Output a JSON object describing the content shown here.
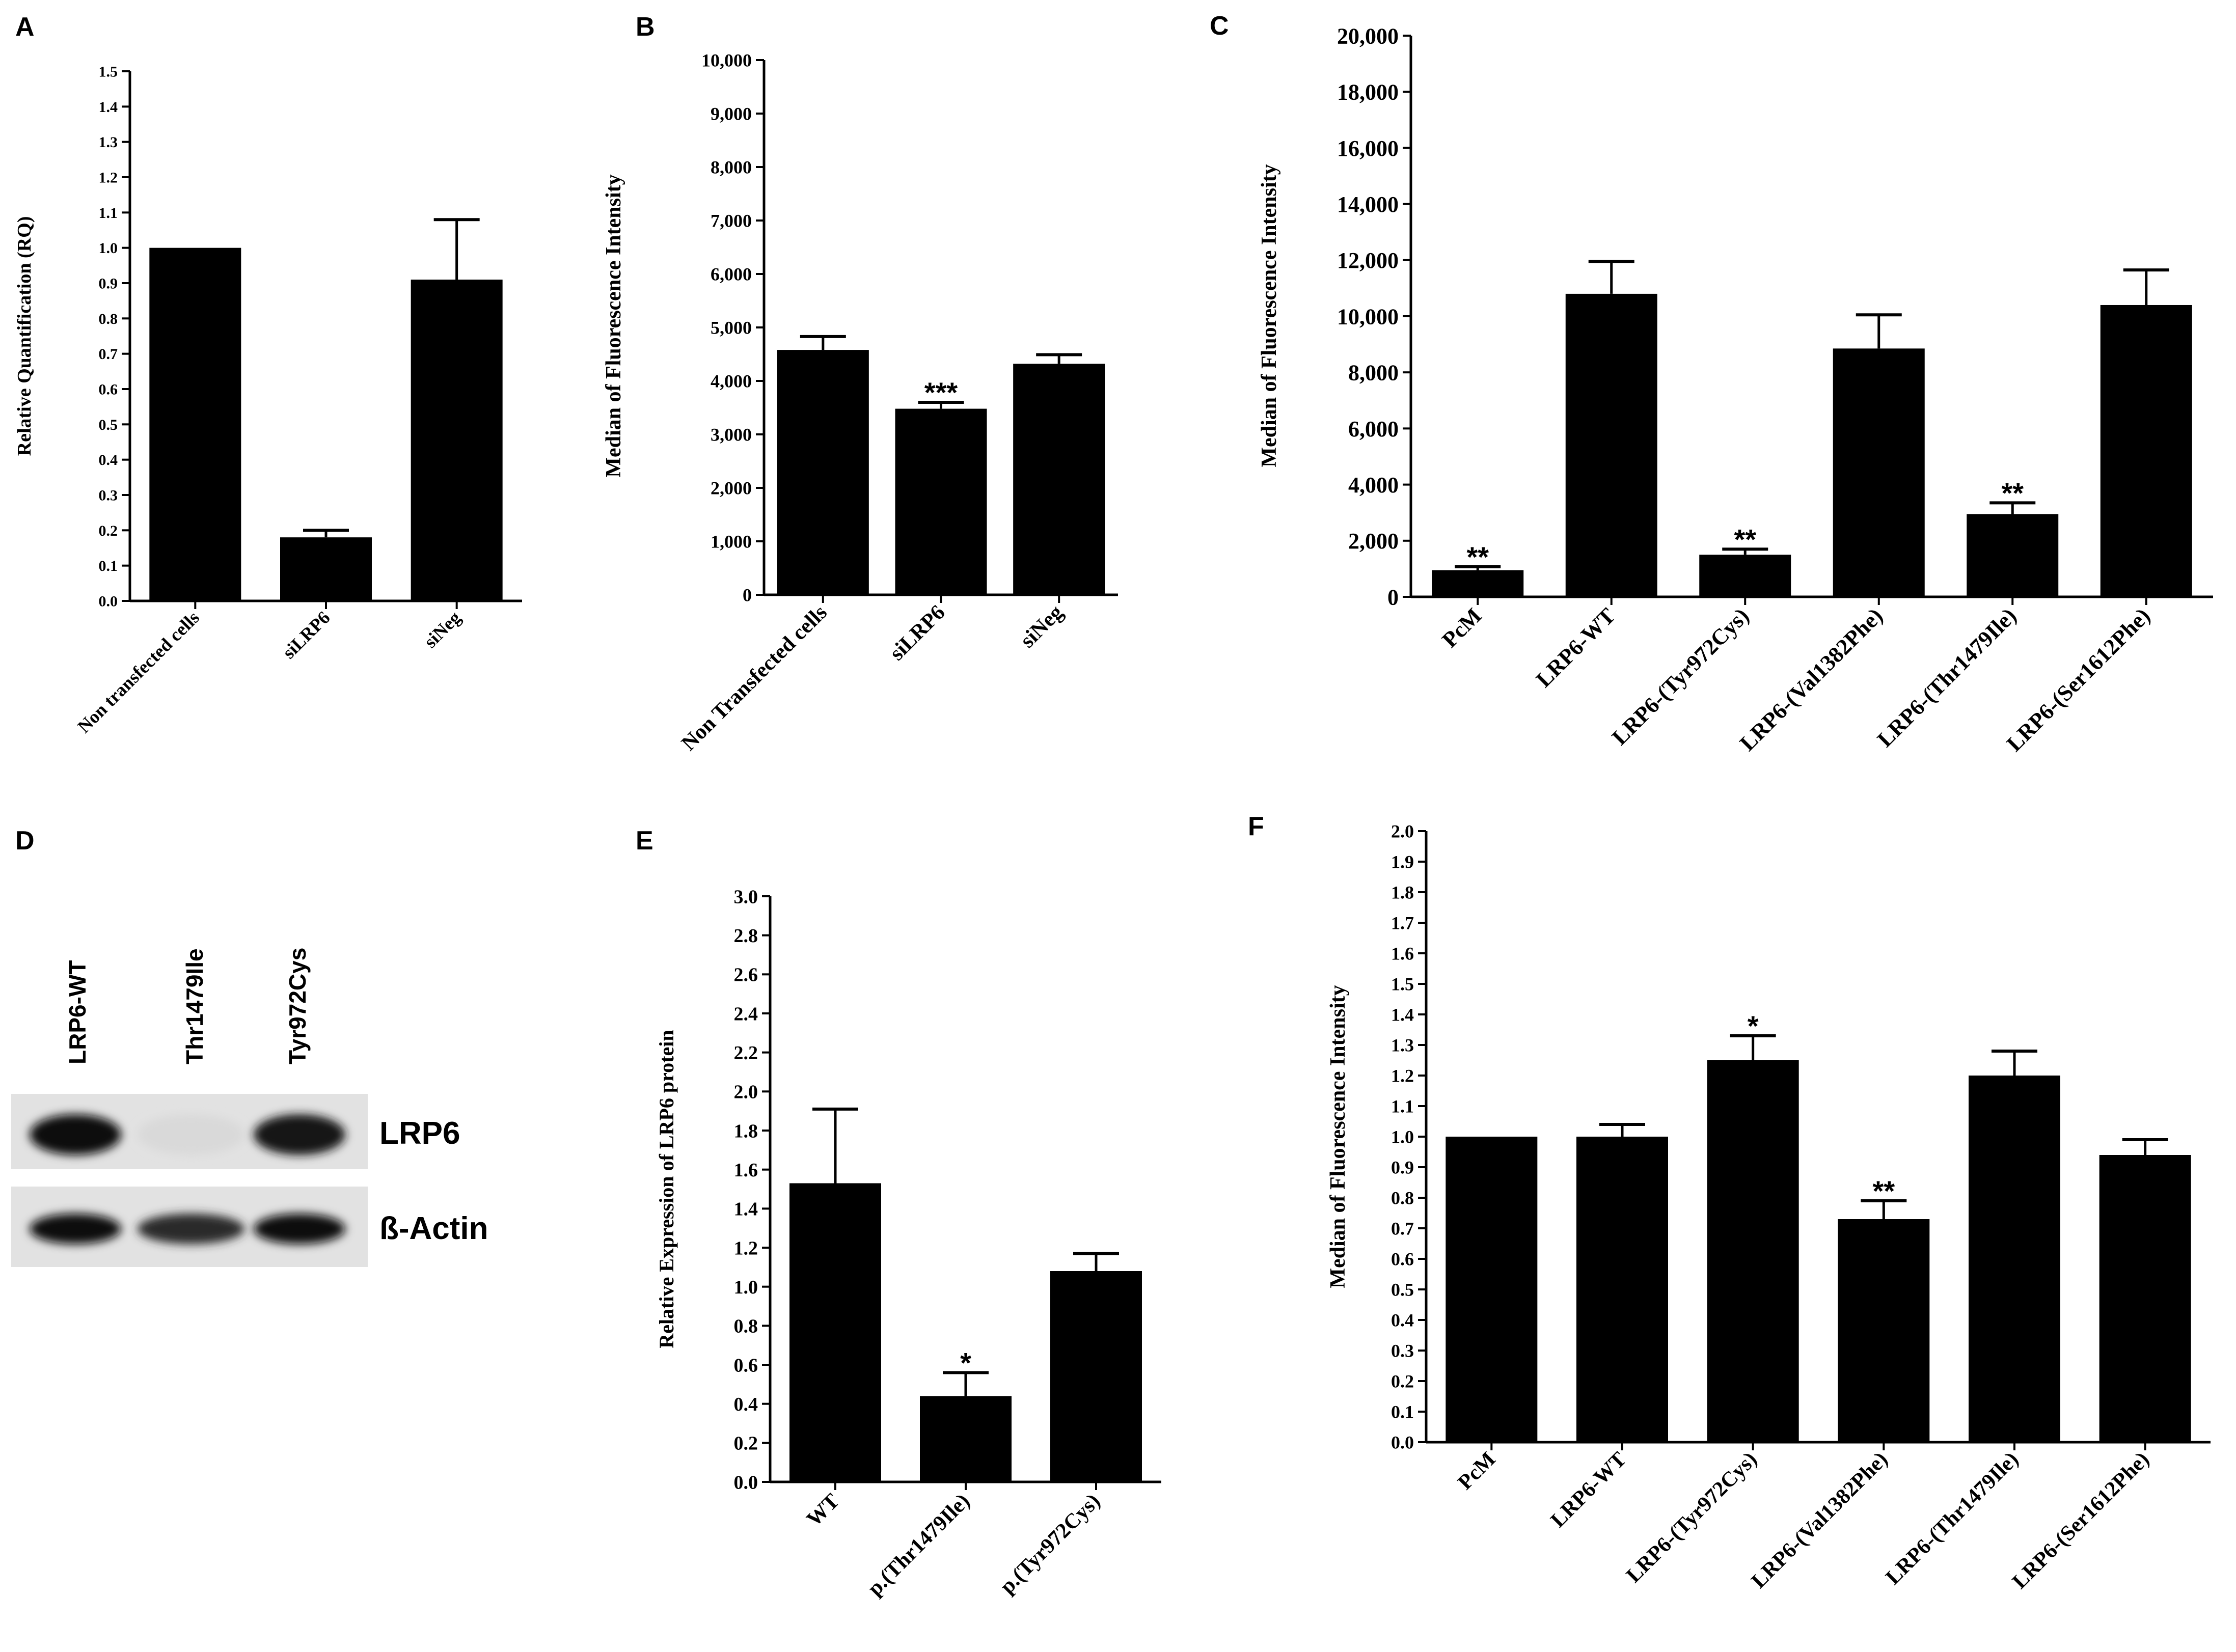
{
  "chart_data": [
    {
      "type": "bar",
      "panel": "A",
      "title": "",
      "xlabel": "",
      "ylabel": "Relative Quantification (RQ)",
      "ylim": [
        0,
        1.5
      ],
      "yticks": [
        "0.0",
        "0.1",
        "0.2",
        "0.3",
        "0.4",
        "0.5",
        "0.6",
        "0.7",
        "0.8",
        "0.9",
        "1.0",
        "1.1",
        "1.2",
        "1.3",
        "1.4",
        "1.5"
      ],
      "categories": [
        "Non transfected cells",
        "siLRP6",
        "siNeg"
      ],
      "values": [
        1.0,
        0.18,
        0.91
      ],
      "errors": [
        0,
        0.02,
        0.17
      ],
      "significance": [
        "",
        "",
        ""
      ]
    },
    {
      "type": "bar",
      "panel": "B",
      "title": "",
      "xlabel": "",
      "ylabel": "Median of Fluorescence Intensity",
      "ylim": [
        0,
        10000
      ],
      "yticks": [
        "0",
        "1,000",
        "2,000",
        "3,000",
        "4,000",
        "5,000",
        "6,000",
        "7,000",
        "8,000",
        "9,000",
        "10,000"
      ],
      "categories": [
        "Non Transfected cells",
        "siLRP6",
        "siNeg"
      ],
      "values": [
        4580,
        3480,
        4320
      ],
      "errors": [
        250,
        120,
        170
      ],
      "significance": [
        "",
        "***",
        ""
      ]
    },
    {
      "type": "bar",
      "panel": "C",
      "title": "",
      "xlabel": "",
      "ylabel": "Median of Fluorescence Intensity",
      "ylim": [
        0,
        20000
      ],
      "yticks": [
        "0",
        "2,000",
        "4,000",
        "6,000",
        "8,000",
        "10,000",
        "12,000",
        "14,000",
        "16,000",
        "18,000",
        "20,000"
      ],
      "categories": [
        "PcM",
        "LRP6-WT",
        "LRP6-(Tyr972Cys)",
        "LRP6-(Val1382Phe)",
        "LRP6-(Thr1479Ile)",
        "LRP6-(Ser1612Phe)"
      ],
      "values": [
        950,
        10800,
        1500,
        8850,
        2950,
        10400
      ],
      "errors": [
        120,
        1150,
        200,
        1200,
        400,
        1250
      ],
      "significance": [
        "**",
        "",
        "**",
        "",
        "**",
        ""
      ]
    },
    {
      "type": "blot",
      "panel": "D",
      "lanes": [
        "LRP6-WT",
        "Thr1479Ile",
        "Tyr972Cys"
      ],
      "rows": [
        {
          "label": "LRP6",
          "intensities": [
            1.0,
            0.08,
            0.95
          ]
        },
        {
          "label": "ß-Actin",
          "intensities": [
            1.0,
            0.85,
            1.0
          ]
        }
      ]
    },
    {
      "type": "bar",
      "panel": "E",
      "title": "",
      "xlabel": "",
      "ylabel": "Relative Expression of LRP6 protein",
      "ylim": [
        0,
        3.0
      ],
      "yticks": [
        "0.0",
        "0.2",
        "0.4",
        "0.6",
        "0.8",
        "1.0",
        "1.2",
        "1.4",
        "1.6",
        "1.8",
        "2.0",
        "2.2",
        "2.4",
        "2.6",
        "2.8",
        "3.0"
      ],
      "categories": [
        "WT",
        "p.(Thr1479Ile)",
        "p.(Tyr972Cys)"
      ],
      "values": [
        1.53,
        0.44,
        1.08
      ],
      "errors": [
        0.38,
        0.12,
        0.09
      ],
      "significance": [
        "",
        "*",
        ""
      ]
    },
    {
      "type": "bar",
      "panel": "F",
      "title": "",
      "xlabel": "",
      "ylabel": "Median of Fluorescence Intensity",
      "ylim": [
        0,
        2.0
      ],
      "yticks": [
        "0.0",
        "0.1",
        "0.2",
        "0.3",
        "0.4",
        "0.5",
        "0.6",
        "0.7",
        "0.8",
        "0.9",
        "1.0",
        "1.1",
        "1.2",
        "1.3",
        "1.4",
        "1.5",
        "1.6",
        "1.7",
        "1.8",
        "1.9",
        "2.0"
      ],
      "categories": [
        "PcM",
        "LRP6-WT",
        "LRP6-(Tyr972Cys)",
        "LRP6-(Val1382Phe)",
        "LRP6-(Thr1479Ile)",
        "LRP6-(Ser1612Phe)"
      ],
      "values": [
        1.0,
        1.0,
        1.25,
        0.73,
        1.2,
        0.94
      ],
      "errors": [
        0,
        0.04,
        0.08,
        0.06,
        0.08,
        0.05
      ],
      "significance": [
        "",
        "",
        "*",
        "**",
        "",
        ""
      ]
    }
  ]
}
